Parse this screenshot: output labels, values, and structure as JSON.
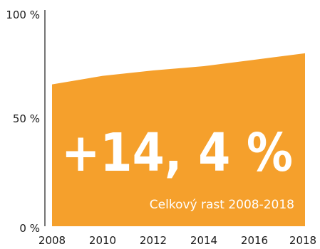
{
  "colors": {
    "area": "#f5a02c",
    "axis": "#1a1a1a",
    "text": "#1a1a1a",
    "overlay_text": "#ffffff"
  },
  "chart_data": {
    "type": "area",
    "x": [
      2008,
      2010,
      2012,
      2014,
      2016,
      2018
    ],
    "values": [
      66,
      70,
      72.5,
      74.5,
      77.5,
      80.5
    ],
    "xlim": [
      2008,
      2018
    ],
    "ylim": [
      0,
      100
    ],
    "x_ticks": [
      "2008",
      "2010",
      "2012",
      "2014",
      "2016",
      "2018"
    ],
    "y_ticks": [
      {
        "value": 0,
        "label": "0 %"
      },
      {
        "value": 50,
        "label": "50 %"
      },
      {
        "value": 100,
        "label": "100 %"
      }
    ],
    "annotation_big": "+14, 4 %",
    "annotation_small": "Celkový rast 2008-2018",
    "grid": false
  }
}
